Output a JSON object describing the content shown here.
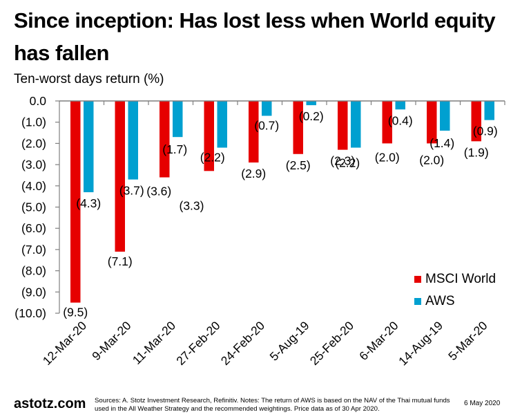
{
  "header": {
    "title": "Since inception: Has lost less when World equity has fallen",
    "subtitle": "Ten-worst days return (%)"
  },
  "chart_data": {
    "type": "bar",
    "title": "Since inception: Has lost less when World equity has fallen",
    "ylabel": "Ten-worst days return (%)",
    "xlabel": "",
    "ylim": [
      -10,
      0
    ],
    "yticks": [
      0,
      -1,
      -2,
      -3,
      -4,
      -5,
      -6,
      -7,
      -8,
      -9,
      -10
    ],
    "ytick_labels": [
      "0.0",
      "(1.0)",
      "(2.0)",
      "(3.0)",
      "(4.0)",
      "(5.0)",
      "(6.0)",
      "(7.0)",
      "(8.0)",
      "(9.0)",
      "(10.0)"
    ],
    "categories": [
      "12-Mar-20",
      "9-Mar-20",
      "11-Mar-20",
      "27-Feb-20",
      "24-Feb-20",
      "5-Aug-19",
      "25-Feb-20",
      "6-Mar-20",
      "14-Aug-19",
      "5-Mar-20"
    ],
    "series": [
      {
        "name": "MSCI World",
        "color": "#e60000",
        "values": [
          -9.5,
          -7.1,
          -3.6,
          -3.3,
          -2.9,
          -2.5,
          -2.3,
          -2.0,
          -2.0,
          -1.9
        ],
        "labels": [
          "(9.5)",
          "(7.1)",
          "(3.6)",
          "(3.3)",
          "(2.9)",
          "(2.5)",
          "(2.3)",
          "(2.0)",
          "(2.0)",
          "(1.9)"
        ]
      },
      {
        "name": "AWS",
        "color": "#00a0d0",
        "values": [
          -4.3,
          -3.7,
          -1.7,
          -2.2,
          -0.7,
          -0.2,
          -2.2,
          -0.4,
          -1.4,
          -0.9
        ],
        "labels": [
          "(4.3)",
          "(3.7)",
          "(1.7)",
          "(2.2)",
          "(0.7)",
          "(0.2)",
          "(2.2)",
          "(0.4)",
          "(1.4)",
          "(0.9)"
        ]
      }
    ],
    "grid": false,
    "legend_position": "bottom-right"
  },
  "legend": [
    {
      "label": "MSCI World",
      "color": "#e60000"
    },
    {
      "label": "AWS",
      "color": "#00a0d0"
    }
  ],
  "footer": {
    "brand": "astotz.com",
    "notes": "Sources: A. Stotz Investment Research, Refinitiv. Notes: The return of AWS is based on the NAV of the Thai mutual funds used in the All Weather Strategy and the recommended weightings. Price data as of 30 Apr 2020.",
    "date": "6 May 2020"
  }
}
